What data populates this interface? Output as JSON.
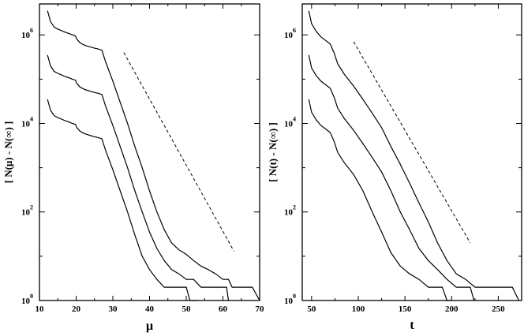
{
  "chart_data": [
    {
      "type": "line",
      "title": "",
      "xlabel": "μ",
      "ylabel": "[ N(μ) - N(∞) ]",
      "y_scale": "log",
      "xlim": [
        10,
        70
      ],
      "ylim": [
        1,
        5000000
      ],
      "x_ticks": [
        10,
        20,
        30,
        40,
        50,
        60,
        70
      ],
      "x_tick_labels": [
        "10",
        "20",
        "30",
        "40",
        "50",
        "60",
        "70"
      ],
      "y_ticks": [
        1,
        100,
        10000,
        1000000
      ],
      "y_tick_base": "10",
      "y_tick_exponents": [
        "0",
        "2",
        "4",
        "6"
      ],
      "grid": false,
      "legend": "none",
      "series": [
        {
          "x": [
            12.2,
            13,
            14,
            15,
            16,
            17,
            18,
            19,
            19.8,
            20.2,
            21,
            22,
            23,
            24,
            25,
            26,
            27,
            28,
            30,
            32,
            34,
            36,
            38,
            40,
            42,
            44,
            46,
            48,
            50,
            52,
            54,
            56,
            58,
            60,
            61.5,
            62.5,
            64,
            66,
            68,
            70
          ],
          "y": [
            3500000,
            2000000,
            1500000,
            1350000,
            1250000,
            1150000,
            1080000,
            1000000,
            950000,
            800000,
            670000,
            600000,
            560000,
            530000,
            500000,
            480000,
            450000,
            250000,
            90000,
            30000,
            10000,
            3000,
            1000,
            300,
            100,
            40,
            20,
            14,
            11,
            8,
            6,
            5,
            4,
            3,
            3,
            2,
            2,
            2,
            2,
            1
          ]
        },
        {
          "x": [
            12.2,
            13,
            14,
            15,
            16,
            17,
            18,
            19,
            19.8,
            20.2,
            21,
            22,
            23,
            24,
            25,
            26,
            27,
            28,
            30,
            32,
            34,
            36,
            38,
            40,
            42,
            44,
            46,
            48,
            50,
            52,
            54,
            56,
            58,
            60,
            61,
            61.5
          ],
          "y": [
            350000,
            200000,
            150000,
            135000,
            125000,
            115000,
            108000,
            100000,
            95000,
            80000,
            67000,
            60000,
            56000,
            53000,
            50000,
            48000,
            45000,
            25000,
            9000,
            3000,
            1000,
            300,
            100,
            35,
            15,
            8,
            5,
            4,
            3,
            3,
            2,
            2,
            2,
            2,
            2,
            1
          ]
        },
        {
          "x": [
            12.2,
            13,
            14,
            15,
            16,
            17,
            18,
            19,
            19.8,
            20.2,
            21,
            22,
            23,
            24,
            25,
            26,
            27,
            28,
            30,
            32,
            34,
            36,
            38,
            40,
            42,
            44,
            46,
            48,
            50,
            51,
            53
          ],
          "y": [
            35000,
            20000,
            15000,
            13500,
            12500,
            11500,
            10800,
            10000,
            9500,
            8000,
            6700,
            6000,
            5600,
            5300,
            5000,
            4800,
            4500,
            2500,
            900,
            300,
            100,
            30,
            10,
            5,
            3,
            2,
            2,
            2,
            2,
            1,
            1
          ]
        },
        {
          "name": "",
          "style": "dashed",
          "x": [
            33,
            63
          ],
          "y": [
            400000,
            13
          ]
        }
      ]
    },
    {
      "type": "line",
      "title": "",
      "xlabel": "t",
      "ylabel": "[ N(t) - N(∞) ]",
      "y_scale": "log",
      "xlim": [
        40,
        275
      ],
      "ylim": [
        1,
        5000000
      ],
      "x_ticks": [
        50,
        100,
        150,
        200,
        250
      ],
      "x_tick_labels": [
        "50",
        "100",
        "150",
        "200",
        "250"
      ],
      "y_ticks": [
        1,
        100,
        10000,
        1000000
      ],
      "y_tick_base": "10",
      "y_tick_exponents": [
        "0",
        "2",
        "4",
        "6"
      ],
      "grid": false,
      "legend": "none",
      "series": [
        {
          "x": [
            47,
            50,
            55,
            60,
            65,
            70,
            74,
            78,
            85,
            95,
            105,
            115,
            125,
            135,
            145,
            155,
            165,
            175,
            185,
            195,
            205,
            215,
            225,
            235,
            245,
            255,
            265,
            272
          ],
          "y": [
            3500000,
            1800000,
            1200000,
            900000,
            750000,
            620000,
            400000,
            220000,
            130000,
            70000,
            35000,
            17000,
            8000,
            3000,
            1200,
            450,
            160,
            60,
            20,
            8,
            4,
            3,
            2,
            2,
            2,
            2,
            2,
            1
          ]
        },
        {
          "x": [
            47,
            50,
            55,
            60,
            65,
            70,
            74,
            78,
            85,
            95,
            105,
            115,
            125,
            135,
            145,
            155,
            165,
            175,
            185,
            195,
            205,
            215,
            220,
            224
          ],
          "y": [
            350000,
            180000,
            120000,
            90000,
            75000,
            62000,
            40000,
            22000,
            13000,
            7000,
            3500,
            1700,
            800,
            300,
            100,
            40,
            15,
            8,
            5,
            3,
            2,
            2,
            2,
            1
          ]
        },
        {
          "x": [
            47,
            50,
            55,
            60,
            65,
            70,
            74,
            78,
            85,
            95,
            105,
            115,
            125,
            135,
            145,
            155,
            165,
            175,
            185,
            190,
            195,
            200
          ],
          "y": [
            35000,
            18000,
            12000,
            9000,
            7500,
            6200,
            4000,
            2200,
            1300,
            700,
            300,
            100,
            35,
            12,
            6,
            4,
            3,
            2,
            2,
            2,
            1,
            1
          ]
        },
        {
          "name": "",
          "style": "dashed",
          "x": [
            95,
            220
          ],
          "y": [
            700000,
            20
          ]
        }
      ]
    }
  ]
}
